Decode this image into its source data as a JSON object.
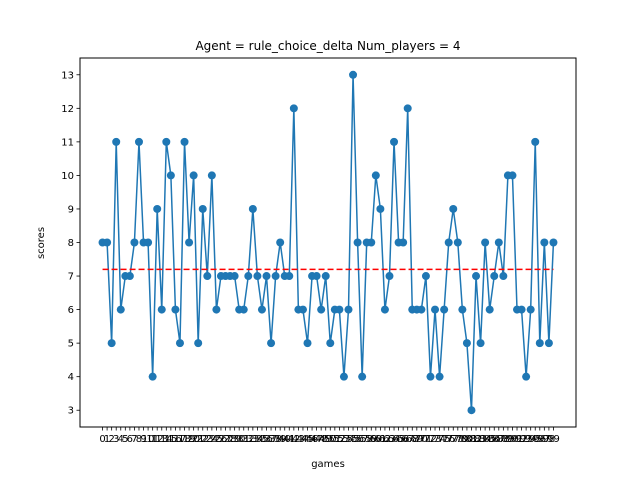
{
  "chart_data": {
    "type": "line",
    "title": "Agent = rule_choice_delta Num_players = 4",
    "xlabel": "games",
    "ylabel": "scores",
    "x": [
      0,
      1,
      2,
      3,
      4,
      5,
      6,
      7,
      8,
      9,
      10,
      11,
      12,
      13,
      14,
      15,
      16,
      17,
      18,
      19,
      20,
      21,
      22,
      23,
      24,
      25,
      26,
      27,
      28,
      29,
      30,
      31,
      32,
      33,
      34,
      35,
      36,
      37,
      38,
      39,
      40,
      41,
      42,
      43,
      44,
      45,
      46,
      47,
      48,
      49,
      50,
      51,
      52,
      53,
      54,
      55,
      56,
      57,
      58,
      59,
      60,
      61,
      62,
      63,
      64,
      65,
      66,
      67,
      68,
      69,
      70,
      71,
      72,
      73,
      74,
      75,
      76,
      77,
      78,
      79,
      80,
      81,
      82,
      83,
      84,
      85,
      86,
      87,
      88,
      89,
      90,
      91,
      92,
      93,
      94,
      95,
      96,
      97,
      98,
      99
    ],
    "xticks": [
      "0",
      "1",
      "2",
      "3",
      "4",
      "5",
      "6",
      "7",
      "8",
      "9",
      "10",
      "11",
      "12",
      "13",
      "14",
      "15",
      "16",
      "17",
      "18",
      "19",
      "20",
      "21",
      "22",
      "23",
      "24",
      "25",
      "26",
      "27",
      "28",
      "29",
      "30",
      "31",
      "32",
      "33",
      "34",
      "35",
      "36",
      "37",
      "38",
      "39",
      "40",
      "41",
      "42",
      "43",
      "44",
      "45",
      "46",
      "47",
      "48",
      "49",
      "50",
      "51",
      "52",
      "53",
      "54",
      "55",
      "56",
      "57",
      "58",
      "59",
      "60",
      "61",
      "62",
      "63",
      "64",
      "65",
      "66",
      "67",
      "68",
      "69",
      "70",
      "71",
      "72",
      "73",
      "74",
      "75",
      "76",
      "77",
      "78",
      "79",
      "80",
      "81",
      "82",
      "83",
      "84",
      "85",
      "86",
      "87",
      "88",
      "89",
      "90",
      "91",
      "92",
      "93",
      "94",
      "95",
      "96",
      "97",
      "98",
      "99"
    ],
    "yticks": [
      "3",
      "4",
      "5",
      "6",
      "7",
      "8",
      "9",
      "10",
      "11",
      "12",
      "13"
    ],
    "xlim": [
      -4.95,
      103.95
    ],
    "ylim": [
      2.5,
      13.5
    ],
    "series": [
      {
        "name": "",
        "color": "#1f77b4",
        "marker": "circle",
        "values": [
          8,
          8,
          5,
          11,
          6,
          7,
          7,
          8,
          11,
          8,
          8,
          4,
          9,
          6,
          11,
          10,
          6,
          5,
          11,
          8,
          10,
          5,
          9,
          7,
          10,
          6,
          7,
          7,
          7,
          7,
          6,
          6,
          7,
          9,
          7,
          6,
          7,
          5,
          7,
          8,
          7,
          7,
          12,
          6,
          6,
          5,
          7,
          7,
          6,
          7,
          5,
          6,
          6,
          4,
          6,
          13,
          8,
          4,
          8,
          8,
          10,
          9,
          6,
          7,
          11,
          8,
          8,
          12,
          6,
          6,
          6,
          7,
          4,
          6,
          4,
          6,
          8,
          9,
          8,
          6,
          5,
          3,
          7,
          5,
          8,
          6,
          7,
          8,
          7,
          10,
          10,
          6,
          6,
          4,
          6,
          11,
          5,
          8,
          5,
          8
        ]
      }
    ],
    "reference_line": {
      "y": 7.2,
      "color": "#ff0000",
      "style": "dashed"
    },
    "grid": false,
    "legend": "none"
  }
}
